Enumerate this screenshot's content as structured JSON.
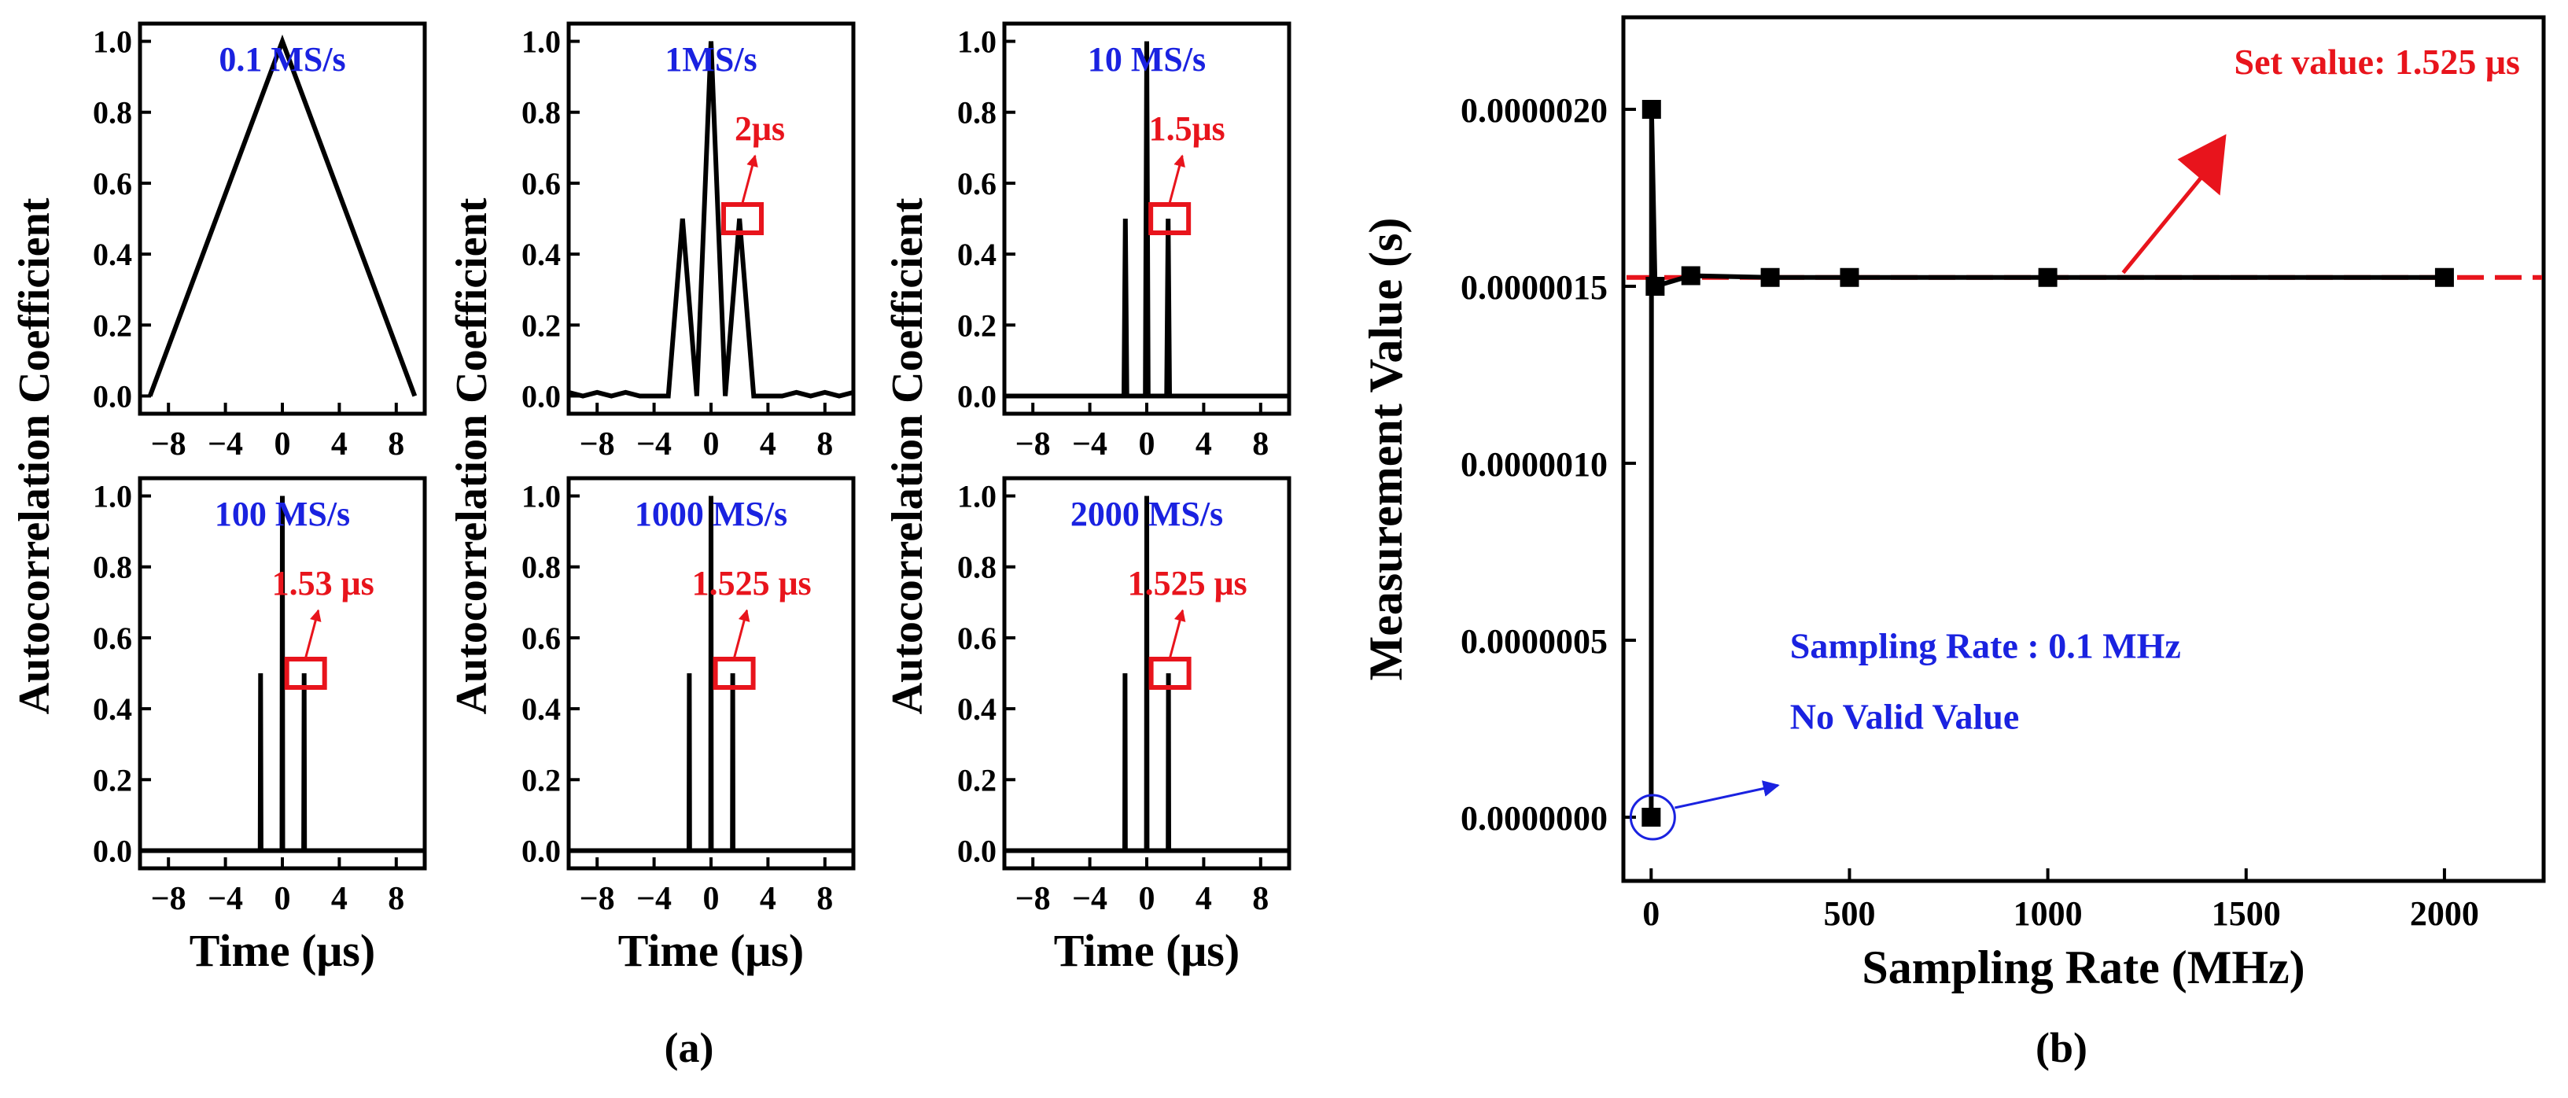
{
  "figure": {
    "caption_a": "(a)",
    "caption_b": "(b)"
  },
  "colors": {
    "black": "#000000",
    "red": "#e8141c",
    "blue": "#1a22e0"
  },
  "chart_data": [
    {
      "id": "a1",
      "type": "line",
      "row": 0,
      "col": 0,
      "title": "0.1 MS/s",
      "annotation": "",
      "xlim": [
        -10,
        10
      ],
      "ylim": [
        -0.05,
        1.05
      ],
      "xticks": [
        "-8",
        "-4",
        "0",
        "4",
        "8"
      ],
      "yticks": [
        "0.0",
        "0.2",
        "0.4",
        "0.6",
        "0.8",
        "1.0"
      ],
      "xlabel": "",
      "ylabel": "",
      "series": [
        {
          "name": "autocorrelation",
          "x": [
            -9.3,
            0,
            9.3
          ],
          "y": [
            0,
            1,
            0
          ]
        }
      ],
      "marker": null
    },
    {
      "id": "a2",
      "type": "line",
      "row": 0,
      "col": 1,
      "title": "1MS/s",
      "annotation": "2μs",
      "xlim": [
        -10,
        10
      ],
      "ylim": [
        -0.05,
        1.05
      ],
      "xticks": [
        "-8",
        "-4",
        "0",
        "4",
        "8"
      ],
      "yticks": [
        "0.0",
        "0.2",
        "0.4",
        "0.6",
        "0.8",
        "1.0"
      ],
      "xlabel": "",
      "ylabel": "",
      "series": [
        {
          "name": "autocorrelation",
          "x": [
            -10,
            -9,
            -8,
            -7,
            -6,
            -5,
            -4,
            -3,
            -2,
            -1,
            0,
            1,
            2,
            3,
            4,
            5,
            6,
            7,
            8,
            9,
            10
          ],
          "y": [
            0.01,
            0.0,
            0.01,
            0.0,
            0.01,
            0.0,
            0.0,
            0.0,
            0.5,
            0.0,
            1.0,
            0.0,
            0.5,
            0.0,
            0.0,
            0.0,
            0.01,
            0.0,
            0.01,
            0.0,
            0.01
          ]
        }
      ],
      "marker": {
        "x": 2.1,
        "y": 0.5
      }
    },
    {
      "id": "a3",
      "type": "line",
      "row": 0,
      "col": 2,
      "title": "10 MS/s",
      "annotation": "1.5μs",
      "xlim": [
        -10,
        10
      ],
      "ylim": [
        -0.05,
        1.05
      ],
      "xticks": [
        "-8",
        "-4",
        "0",
        "4",
        "8"
      ],
      "yticks": [
        "0.0",
        "0.2",
        "0.4",
        "0.6",
        "0.8",
        "1.0"
      ],
      "xlabel": "",
      "ylabel": "",
      "series": [
        {
          "name": "autocorrelation",
          "x": [
            -10,
            -1.6,
            -1.5,
            -1.4,
            -0.1,
            0,
            0.1,
            1.4,
            1.5,
            1.6,
            10
          ],
          "y": [
            0,
            0,
            0.5,
            0,
            0,
            1.0,
            0,
            0,
            0.5,
            0,
            0
          ]
        }
      ],
      "marker": {
        "x": 1.5,
        "y": 0.5
      }
    },
    {
      "id": "a4",
      "type": "line",
      "row": 1,
      "col": 0,
      "title": "100 MS/s",
      "annotation": "1.53 μs",
      "xlim": [
        -10,
        10
      ],
      "ylim": [
        -0.05,
        1.05
      ],
      "xticks": [
        "-8",
        "-4",
        "0",
        "4",
        "8"
      ],
      "yticks": [
        "0.0",
        "0.2",
        "0.4",
        "0.6",
        "0.8",
        "1.0"
      ],
      "xlabel": "Time (μs)",
      "ylabel": "",
      "series": [
        {
          "name": "autocorrelation",
          "x": [
            -10,
            -1.56,
            -1.53,
            -1.5,
            -0.03,
            0,
            0.03,
            1.5,
            1.53,
            1.56,
            10
          ],
          "y": [
            0,
            0,
            0.5,
            0,
            0,
            1.0,
            0,
            0,
            0.5,
            0,
            0
          ]
        }
      ],
      "marker": {
        "x": 1.53,
        "y": 0.5
      }
    },
    {
      "id": "a5",
      "type": "line",
      "row": 1,
      "col": 1,
      "title": "1000 MS/s",
      "annotation": "1.525 μs",
      "xlim": [
        -10,
        10
      ],
      "ylim": [
        -0.05,
        1.05
      ],
      "xticks": [
        "-8",
        "-4",
        "0",
        "4",
        "8"
      ],
      "yticks": [
        "0.0",
        "0.2",
        "0.4",
        "0.6",
        "0.8",
        "1.0"
      ],
      "xlabel": "Time (μs)",
      "ylabel": "",
      "series": [
        {
          "name": "autocorrelation",
          "x": [
            -10,
            -1.545,
            -1.525,
            -1.505,
            -0.02,
            0,
            0.02,
            1.505,
            1.525,
            1.545,
            10
          ],
          "y": [
            0,
            0,
            0.5,
            0,
            0,
            1.0,
            0,
            0,
            0.5,
            0,
            0
          ]
        }
      ],
      "marker": {
        "x": 1.525,
        "y": 0.5
      }
    },
    {
      "id": "a6",
      "type": "line",
      "row": 1,
      "col": 2,
      "title": "2000 MS/s",
      "annotation": "1.525 μs",
      "xlim": [
        -10,
        10
      ],
      "ylim": [
        -0.05,
        1.05
      ],
      "xticks": [
        "-8",
        "-4",
        "0",
        "4",
        "8"
      ],
      "yticks": [
        "0.0",
        "0.2",
        "0.4",
        "0.6",
        "0.8",
        "1.0"
      ],
      "xlabel": "Time (μs)",
      "ylabel": "",
      "series": [
        {
          "name": "autocorrelation",
          "x": [
            -10,
            -1.545,
            -1.525,
            -1.505,
            -0.02,
            0,
            0.02,
            1.505,
            1.525,
            1.545,
            10
          ],
          "y": [
            0,
            0,
            0.5,
            0,
            0,
            1.0,
            0,
            0,
            0.5,
            0,
            0
          ]
        }
      ],
      "marker": {
        "x": 1.525,
        "y": 0.5
      }
    },
    {
      "id": "b",
      "type": "line",
      "title": "",
      "xlabel": "Sampling Rate (MHz)",
      "ylabel": "Measurement Value (s)",
      "xlim": [
        -70,
        2250
      ],
      "ylim": [
        -1.8e-07,
        2.26e-06
      ],
      "xticks": [
        0,
        500,
        1000,
        1500,
        2000
      ],
      "xtick_labels": [
        "0",
        "500",
        "1000",
        "1500",
        "2000"
      ],
      "yticks": [
        0,
        5e-07,
        1e-06,
        1.5e-06,
        2e-06
      ],
      "ytick_labels": [
        "0.0000000",
        "0.0000005",
        "0.0000010",
        "0.0000015",
        "0.0000020"
      ],
      "series": [
        {
          "name": "Measurement Value",
          "x": [
            0.1,
            1,
            10,
            100,
            300,
            500,
            1000,
            2000
          ],
          "y": [
            0,
            2e-06,
            1.5e-06,
            1.53e-06,
            1.525e-06,
            1.525e-06,
            1.525e-06,
            1.525e-06
          ]
        }
      ],
      "reference_line": {
        "y": 1.525e-06,
        "label": "Set value: 1.525 μs"
      },
      "note": {
        "line1": "Sampling Rate :  0.1 MHz",
        "line2": "No Valid Value"
      }
    }
  ]
}
